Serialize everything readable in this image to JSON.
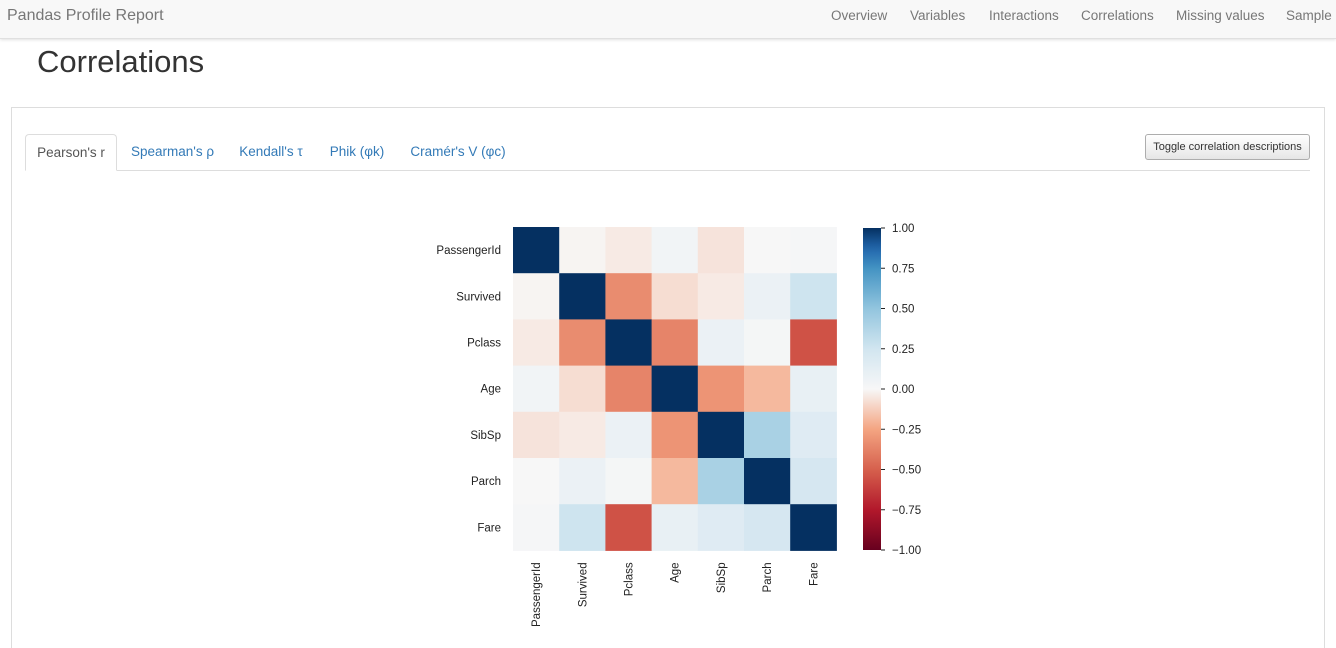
{
  "navbar": {
    "brand": "Pandas Profile Report",
    "items": [
      "Overview",
      "Variables",
      "Interactions",
      "Correlations",
      "Missing values",
      "Sample"
    ]
  },
  "page": {
    "title": "Correlations"
  },
  "tabs": [
    "Pearson's r",
    "Spearman's ρ",
    "Kendall's τ",
    "Phik (φk)",
    "Cramér's V (φc)"
  ],
  "active_tab": 0,
  "toggle_button": {
    "label": "Toggle correlation descriptions"
  },
  "colors": {
    "accent": "#337ab7",
    "cmap": "RdBu"
  },
  "chart_data": {
    "type": "heatmap",
    "title": "",
    "x_labels": [
      "PassengerId",
      "Survived",
      "Pclass",
      "Age",
      "SibSp",
      "Parch",
      "Fare"
    ],
    "y_labels": [
      "PassengerId",
      "Survived",
      "Pclass",
      "Age",
      "SibSp",
      "Parch",
      "Fare"
    ],
    "values": [
      [
        1.0,
        -0.01,
        -0.04,
        0.04,
        -0.06,
        -0.0,
        0.01
      ],
      [
        -0.01,
        1.0,
        -0.34,
        -0.08,
        -0.04,
        0.08,
        0.26
      ],
      [
        -0.04,
        -0.34,
        1.0,
        -0.37,
        0.08,
        0.02,
        -0.55
      ],
      [
        0.04,
        -0.08,
        -0.37,
        1.0,
        -0.31,
        -0.19,
        0.1
      ],
      [
        -0.06,
        -0.04,
        0.08,
        -0.31,
        1.0,
        0.41,
        0.16
      ],
      [
        -0.0,
        0.08,
        0.02,
        -0.19,
        0.41,
        1.0,
        0.22
      ],
      [
        0.01,
        0.26,
        -0.55,
        0.1,
        0.16,
        0.22,
        1.0
      ]
    ],
    "vmin": -1.0,
    "vmax": 1.0,
    "colorbar_ticks": [
      "1.00",
      "0.75",
      "0.50",
      "0.25",
      "0.00",
      "−0.25",
      "−0.50",
      "−0.75",
      "−1.00"
    ],
    "colorbar_values": [
      1.0,
      0.75,
      0.5,
      0.25,
      0.0,
      -0.25,
      -0.5,
      -0.75,
      -1.0
    ],
    "colormap": "RdBu"
  }
}
